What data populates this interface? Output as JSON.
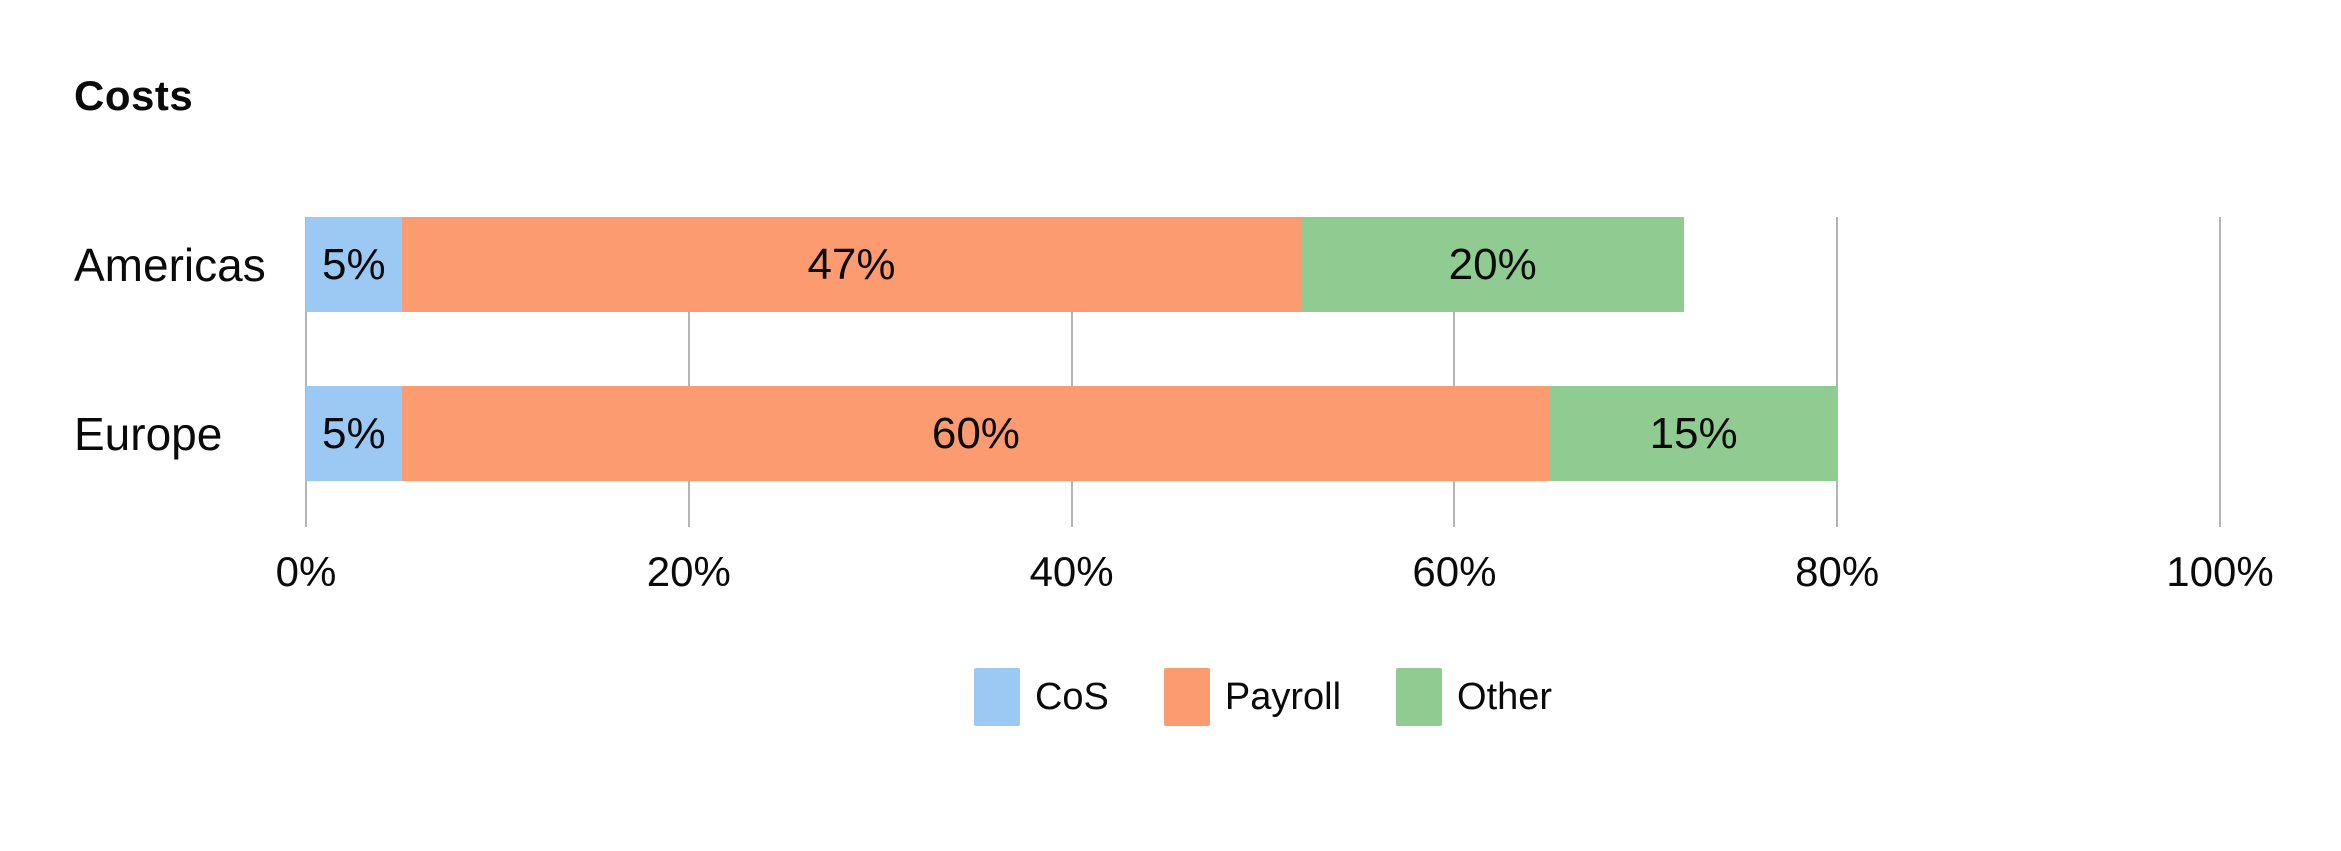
{
  "page": {
    "background": "#ffffff",
    "text_color": "#0a0a0a",
    "gridline_color": "#b5b5b5"
  },
  "chart_data": {
    "type": "bar",
    "variant": "horizontal-stacked",
    "title": "Costs",
    "categories": [
      "Americas",
      "Europe"
    ],
    "series": [
      {
        "name": "CoS",
        "color": "#9CC9F4",
        "values": [
          5,
          5
        ],
        "labels": [
          "5%",
          "5%"
        ]
      },
      {
        "name": "Payroll",
        "color": "#FC9A70",
        "values": [
          47,
          60
        ],
        "labels": [
          "47%",
          "60%"
        ]
      },
      {
        "name": "Other",
        "color": "#90CC91",
        "values": [
          20,
          15
        ],
        "labels": [
          "20%",
          "15%"
        ]
      }
    ],
    "totals": [
      72,
      80
    ],
    "x_axis": {
      "min": 0,
      "max": 100,
      "ticks": [
        {
          "value": 0,
          "label": "0%"
        },
        {
          "value": 20,
          "label": "20%"
        },
        {
          "value": 40,
          "label": "40%"
        },
        {
          "value": 60,
          "label": "60%"
        },
        {
          "value": 80,
          "label": "80%"
        },
        {
          "value": 100,
          "label": "100%"
        }
      ]
    },
    "grid": "vertical",
    "legend_position": "bottom",
    "data_labels": "inside-center"
  }
}
